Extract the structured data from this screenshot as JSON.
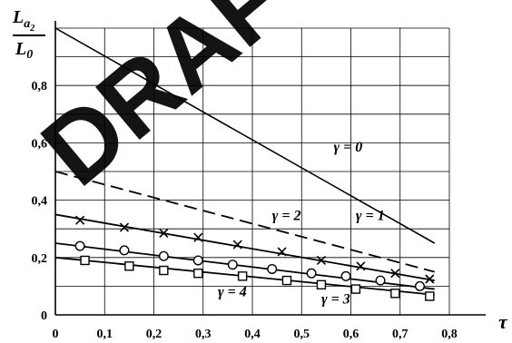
{
  "watermark": "DRAFT",
  "chart_data": {
    "type": "line",
    "ylabel": {
      "main": "L",
      "sub": "a",
      "subsub": "2",
      "den_main": "L",
      "den_sub": "0"
    },
    "xlabel": "τ",
    "xlim": [
      0,
      0.8
    ],
    "ylim": [
      0,
      1.0
    ],
    "x_ticks": [
      0,
      0.1,
      0.2,
      0.3,
      0.4,
      0.5,
      0.6,
      0.7,
      0.8
    ],
    "x_tick_labels": [
      "0",
      "0,1",
      "0,2",
      "0,3",
      "0,4",
      "0,5",
      "0,6",
      "0,7",
      "0,8"
    ],
    "y_ticks": [
      0,
      0.2,
      0.4,
      0.6,
      0.8
    ],
    "y_tick_labels": [
      "0",
      "0,2",
      "0,4",
      "0,6",
      "0,8"
    ],
    "grid": true,
    "series": [
      {
        "name": "γ = 0",
        "style": "solid",
        "x": [
          0,
          0.77
        ],
        "y": [
          1.0,
          0.25
        ],
        "marker": "none",
        "markers_x": [],
        "markers_y": []
      },
      {
        "name": "γ = 1",
        "style": "dashed",
        "x": [
          0,
          0.77
        ],
        "y": [
          0.5,
          0.15
        ],
        "marker": "none",
        "markers_x": [],
        "markers_y": []
      },
      {
        "name": "γ = 2",
        "style": "solid",
        "x": [
          0,
          0.77
        ],
        "y": [
          0.35,
          0.12
        ],
        "marker": "cross",
        "markers_x": [
          0.05,
          0.14,
          0.22,
          0.29,
          0.37,
          0.46,
          0.54,
          0.62,
          0.69,
          0.76
        ],
        "markers_y": [
          0.33,
          0.305,
          0.285,
          0.27,
          0.245,
          0.22,
          0.19,
          0.17,
          0.145,
          0.125
        ]
      },
      {
        "name": "γ = 3",
        "style": "solid",
        "x": [
          0,
          0.77
        ],
        "y": [
          0.25,
          0.09
        ],
        "marker": "circle",
        "markers_x": [
          0.05,
          0.14,
          0.22,
          0.29,
          0.36,
          0.44,
          0.52,
          0.59,
          0.66,
          0.74
        ],
        "markers_y": [
          0.24,
          0.225,
          0.205,
          0.19,
          0.175,
          0.16,
          0.145,
          0.135,
          0.12,
          0.1
        ]
      },
      {
        "name": "γ = 4",
        "style": "solid",
        "x": [
          0,
          0.77
        ],
        "y": [
          0.2,
          0.07
        ],
        "marker": "square",
        "markers_x": [
          0.06,
          0.15,
          0.22,
          0.29,
          0.38,
          0.47,
          0.54,
          0.61,
          0.69,
          0.76
        ],
        "markers_y": [
          0.19,
          0.17,
          0.155,
          0.145,
          0.135,
          0.12,
          0.105,
          0.09,
          0.075,
          0.065
        ]
      }
    ],
    "annotations": [
      {
        "text": "γ = 0",
        "x": 0.565,
        "y": 0.57,
        "series": 0
      },
      {
        "text": "γ = 1",
        "x": 0.61,
        "y": 0.33,
        "series": 1
      },
      {
        "text": "γ = 2",
        "x": 0.44,
        "y": 0.33,
        "series": 2
      },
      {
        "text": "γ = 3",
        "x": 0.54,
        "y": 0.04,
        "series": 3
      },
      {
        "text": "γ = 4",
        "x": 0.33,
        "y": 0.065,
        "series": 4
      }
    ]
  }
}
